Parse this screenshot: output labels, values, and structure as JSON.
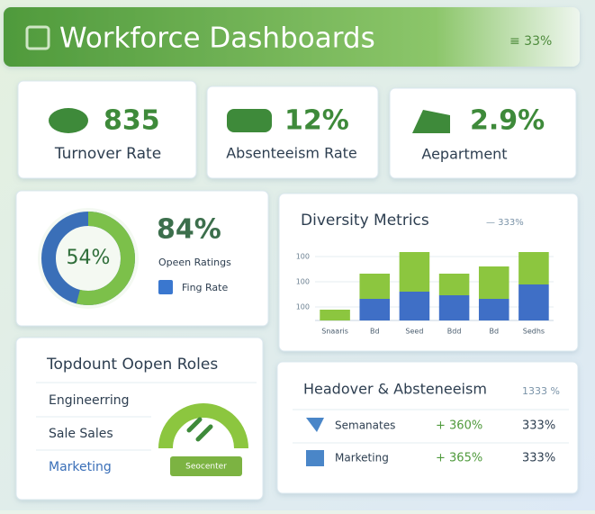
{
  "header": {
    "title": "Workforce Dashboards",
    "badge": "≡ 33%"
  },
  "kpis": [
    {
      "value": "835",
      "label": "Turnover Rate"
    },
    {
      "value": "12%",
      "label": "Absenteeism Rate"
    },
    {
      "value": "2.9%",
      "label": "Aepartment"
    }
  ],
  "donut": {
    "value": 54,
    "label": "54%",
    "big": "84%",
    "line1": "Opeen Ratings",
    "line2": "Fing Rate"
  },
  "diversity": {
    "title": "Diversity Metrics",
    "legend": "— 333%",
    "y_tick_labels": [
      "100",
      "100",
      "100"
    ],
    "ylim": [
      0,
      100
    ],
    "categories": [
      "Snaaris",
      "Bd",
      "Seed",
      "Bdd",
      "Bd",
      "Sedhs"
    ],
    "series": [
      {
        "color": "#3f6fc6",
        "values": [
          0,
          30,
          40,
          35,
          30,
          50
        ]
      },
      {
        "color": "#8cc63f",
        "values": [
          15,
          35,
          55,
          30,
          45,
          45
        ]
      }
    ]
  },
  "roles": {
    "title": "Topdount Oopen Roles",
    "items": [
      "Engineerring",
      "Sale Sales",
      "Marketing"
    ],
    "button": "Seocenter"
  },
  "table": {
    "title": "Headover & Absteneeism",
    "legend": "1333 %",
    "rows": [
      [
        "Semanates",
        "+ 360%",
        "333%"
      ],
      [
        "Marketing",
        "+ 365%",
        "333%"
      ]
    ]
  }
}
